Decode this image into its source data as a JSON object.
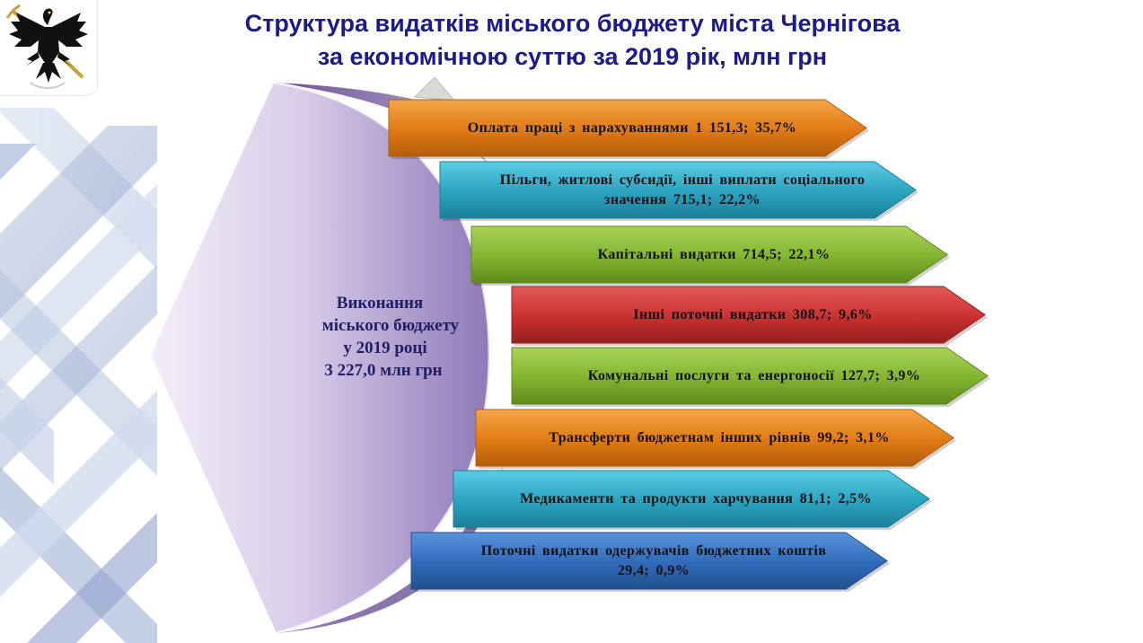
{
  "title": {
    "line1": "Структура видатків міського бюджету міста Чернігова",
    "line2": "за економічною суттю за 2019 рік, млн грн"
  },
  "emblem": {
    "icon": "chernihiv-coat-of-arms-eagle-icon"
  },
  "center": {
    "lines": [
      "Виконання",
      "міського бюджету",
      "у 2019 році",
      "3 227,0 млн грн"
    ]
  },
  "colors": {
    "title": "#1d1a8c",
    "center_shape": "#b9a8d4",
    "orange": "#f0902a",
    "cyan": "#3ab5cf",
    "green": "#94c23e",
    "red": "#d43c3c",
    "blue": "#3b78c8"
  },
  "chart_data": {
    "type": "bar",
    "total": {
      "label": "Виконання міського бюджету у 2019 році",
      "value": 3227.0,
      "unit": "млн грн"
    },
    "items": [
      {
        "lines": [
          "Оплата праці з нарахуваннями  1 151,3; 35,7%"
        ],
        "value": 1151.3,
        "percent": 35.7,
        "color": "orange"
      },
      {
        "lines": [
          "Пільги, житлові субсидії, інші виплати соціального",
          "значення 715,1; 22,2%"
        ],
        "value": 715.1,
        "percent": 22.2,
        "color": "cyan"
      },
      {
        "lines": [
          "Капітальні видатки 714,5; 22,1%"
        ],
        "value": 714.5,
        "percent": 22.1,
        "color": "green"
      },
      {
        "lines": [
          "Інші поточні видатки 308,7; 9,6%"
        ],
        "value": 308.7,
        "percent": 9.6,
        "color": "red"
      },
      {
        "lines": [
          "Комунальні послуги та енергоносії 127,7; 3,9%"
        ],
        "value": 127.7,
        "percent": 3.9,
        "color": "green"
      },
      {
        "lines": [
          "Трансферти бюджетнам інших рівнів  99,2; 3,1%"
        ],
        "value": 99.2,
        "percent": 3.1,
        "color": "orange"
      },
      {
        "lines": [
          "Медикаменти та продукти харчування 81,1; 2,5%"
        ],
        "value": 81.1,
        "percent": 2.5,
        "color": "cyan"
      },
      {
        "lines": [
          "Поточні видатки одержувачів бюджетних коштів",
          "29,4; 0,9%"
        ],
        "value": 29.4,
        "percent": 0.9,
        "color": "blue"
      }
    ]
  }
}
